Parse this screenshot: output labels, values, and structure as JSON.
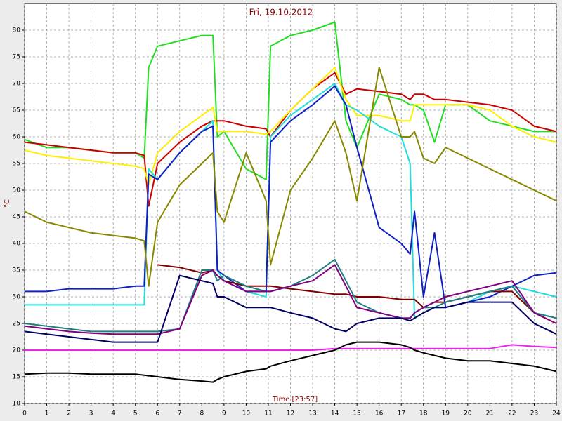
{
  "chart_data": {
    "type": "line",
    "title": "Fri, 19.10.2012",
    "x_label": "Time [23:57]",
    "y_label": "°C",
    "grid": true,
    "xlim": [
      0,
      24
    ],
    "xticks": [
      0,
      1,
      2,
      3,
      4,
      5,
      6,
      7,
      8,
      9,
      10,
      11,
      12,
      13,
      14,
      15,
      16,
      17,
      18,
      19,
      20,
      21,
      22,
      23,
      24
    ],
    "ylim": [
      10,
      85
    ],
    "yticks": [
      10,
      15,
      20,
      25,
      30,
      35,
      40,
      45,
      50,
      55,
      60,
      65,
      70,
      75,
      80
    ],
    "x": [
      0,
      1,
      2,
      3,
      4,
      5,
      5.4,
      5.6,
      6,
      7,
      8,
      8.5,
      8.7,
      9,
      10,
      10.9,
      11.1,
      12,
      13,
      14,
      14.5,
      15,
      16,
      17,
      17.4,
      17.6,
      18,
      18.5,
      19,
      20,
      21,
      22,
      23,
      24
    ],
    "series": [
      {
        "color": "#22dd22",
        "values": [
          59.5,
          58,
          58,
          57.5,
          57,
          57,
          56,
          73,
          77,
          78,
          79,
          79,
          60,
          61,
          54,
          52,
          77,
          79,
          80,
          81.5,
          63,
          58,
          68,
          67,
          66,
          66,
          65,
          59,
          66,
          66,
          63,
          62,
          61,
          61
        ]
      },
      {
        "color": "#cc0000",
        "values": [
          59,
          58.5,
          58,
          57.5,
          57,
          57,
          56.5,
          47,
          55,
          59,
          62,
          63,
          63,
          63,
          62,
          61.5,
          60,
          65,
          69,
          72,
          68,
          69,
          68.5,
          68,
          67,
          68,
          68,
          67,
          67,
          66.5,
          66,
          65,
          62,
          61
        ]
      },
      {
        "color": "#ffee00",
        "values": [
          57.5,
          56.5,
          56,
          55.5,
          55,
          54.5,
          54,
          51,
          57,
          61,
          64,
          65.5,
          61,
          61,
          61,
          60.5,
          61,
          65,
          69,
          73,
          67,
          64,
          64,
          63,
          63,
          66,
          66,
          66,
          66,
          66,
          65,
          62,
          60,
          59
        ]
      },
      {
        "color": "#22dddd",
        "values": [
          28.5,
          28.5,
          28.5,
          28.5,
          28.5,
          28.5,
          28.5,
          54,
          52,
          57,
          61,
          63,
          35,
          33,
          31,
          30,
          60,
          64,
          67,
          70,
          66,
          65,
          62,
          60,
          55,
          26,
          27,
          28,
          28,
          29,
          31,
          32,
          31,
          30
        ]
      },
      {
        "color": "#1020c0",
        "values": [
          31,
          31,
          31.5,
          31.5,
          31.5,
          32,
          32,
          53,
          52,
          57,
          61,
          62,
          35,
          34,
          31,
          31,
          59,
          63,
          66,
          69.5,
          66,
          58,
          43,
          40,
          38,
          46,
          30,
          42,
          28,
          29,
          30,
          32,
          34,
          34.5
        ]
      },
      {
        "color": "#888800",
        "values": [
          46,
          44,
          43,
          42,
          41.5,
          41,
          40.5,
          32,
          44,
          51,
          55,
          57,
          46,
          44,
          57,
          48,
          36,
          50,
          56,
          63,
          57,
          48,
          73,
          60,
          60,
          61,
          56,
          55,
          58,
          56,
          54,
          52,
          50,
          48
        ]
      },
      {
        "color": "#800000",
        "values": [
          null,
          null,
          null,
          null,
          null,
          null,
          null,
          null,
          36,
          35.5,
          34.5,
          35,
          34,
          33,
          32,
          32,
          32,
          31.5,
          31,
          30.5,
          30.5,
          30,
          30,
          29.5,
          29.5,
          29.5,
          28,
          29,
          29,
          30,
          31,
          31,
          27,
          25
        ]
      },
      {
        "color": "#208080",
        "values": [
          25,
          24.5,
          24,
          23.5,
          23.5,
          23.5,
          23.5,
          23.5,
          23.5,
          24,
          35,
          35,
          33,
          34,
          32,
          31,
          31,
          32,
          34,
          37,
          33,
          29,
          27,
          26,
          26,
          27,
          28,
          28,
          29,
          30,
          31,
          32,
          27,
          26
        ]
      },
      {
        "color": "#800080",
        "values": [
          24.5,
          24,
          23.5,
          23.2,
          23,
          23,
          23,
          23,
          23,
          24,
          34,
          35,
          34,
          33,
          31,
          31,
          31,
          32,
          33,
          36,
          32,
          28,
          27,
          26,
          26,
          27,
          28,
          29,
          30,
          31,
          32,
          33,
          27,
          25
        ]
      },
      {
        "color": "#000060",
        "values": [
          23.5,
          23,
          22.5,
          22,
          21.5,
          21.5,
          21.5,
          21.5,
          21.5,
          34,
          33,
          32.5,
          30,
          30,
          28,
          28,
          28,
          27,
          26,
          24,
          23.5,
          25,
          26,
          26,
          25.5,
          26,
          27,
          28,
          28,
          29,
          29,
          29,
          25,
          23
        ]
      },
      {
        "color": "#ee22ee",
        "values": [
          20,
          20,
          20,
          20,
          20,
          20,
          20,
          20,
          20,
          20,
          20,
          20,
          20,
          20,
          20,
          20,
          20,
          20,
          20,
          20.3,
          20.3,
          20.3,
          20.3,
          20.3,
          20.3,
          20.3,
          20.3,
          20.3,
          20.3,
          20.3,
          20.3,
          21,
          20.7,
          20.5
        ]
      },
      {
        "color": "#000000",
        "values": [
          15.5,
          15.7,
          15.7,
          15.5,
          15.5,
          15.5,
          15.3,
          15.2,
          15,
          14.5,
          14.2,
          14,
          14.5,
          15,
          16,
          16.5,
          17,
          18,
          19,
          20,
          21,
          21.5,
          21.5,
          21,
          20.5,
          20,
          19.5,
          19,
          18.5,
          18,
          18,
          17.5,
          17,
          16
        ]
      }
    ]
  }
}
